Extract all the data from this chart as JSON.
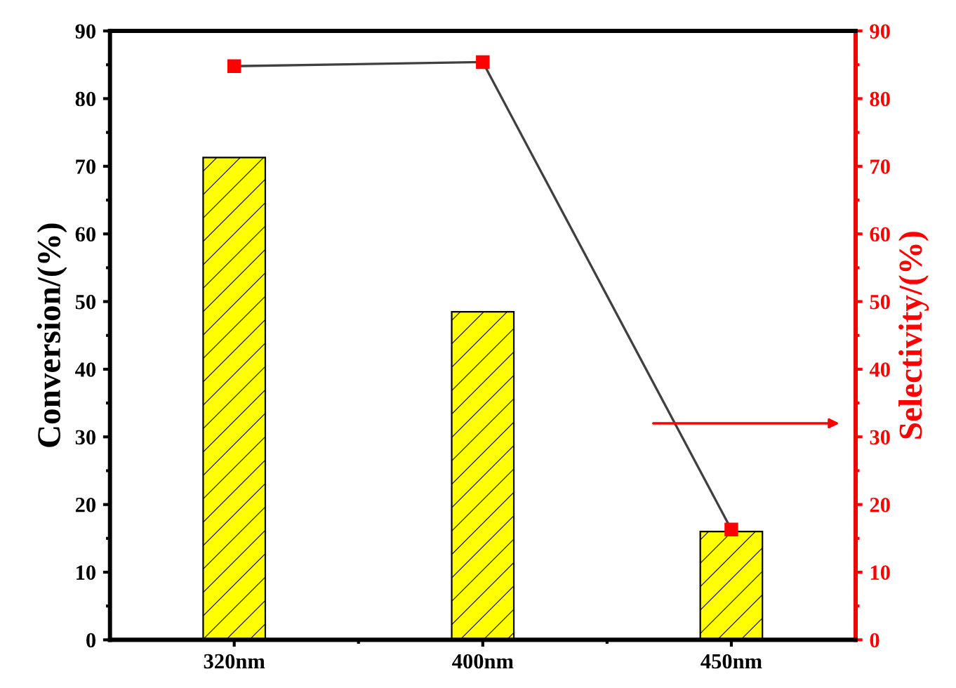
{
  "chart_data": {
    "type": "bar",
    "categories": [
      "320nm",
      "400nm",
      "450nm"
    ],
    "ylabel": "Conversion/(%)",
    "y2label": "Selectivity/(%)",
    "series": [
      {
        "color": "#ffff00",
        "values": [
          71.3,
          48.5,
          16
        ]
      },
      {
        "type": "line",
        "axis": "y2",
        "color": "#ff0000",
        "marker": "square",
        "values": [
          84.8,
          85.4,
          16.3
        ]
      }
    ],
    "ylim": [
      0,
      90
    ],
    "yticks": [
      0,
      10,
      20,
      30,
      40,
      50,
      60,
      70,
      80,
      90
    ],
    "y2lim": [
      0,
      90
    ],
    "y2ticks": [
      0,
      10,
      20,
      30,
      40,
      50,
      60,
      70,
      80,
      90
    ],
    "grid": false,
    "legend": false
  }
}
